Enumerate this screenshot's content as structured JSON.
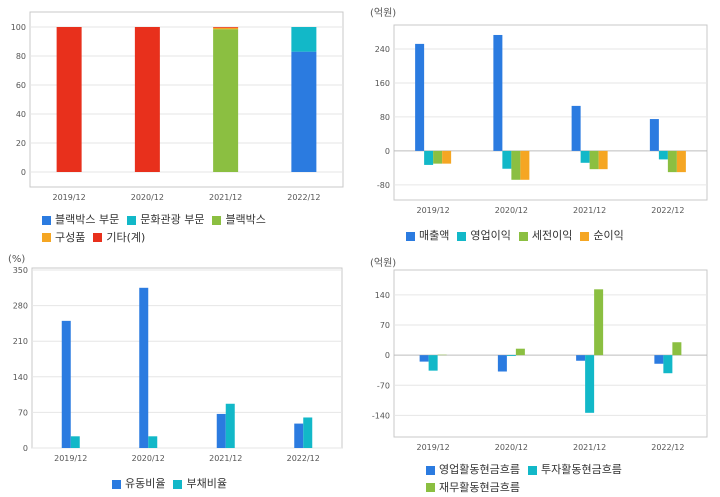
{
  "colors": {
    "blue": "#2b7be0",
    "cyan": "#12b8c8",
    "green": "#8bbf41",
    "orange": "#f5a623",
    "red": "#e8301c"
  },
  "chart_data": [
    {
      "id": "composition",
      "type": "bar",
      "stacked": true,
      "unit": "",
      "categories": [
        "2019/12",
        "2020/12",
        "2021/12",
        "2022/12"
      ],
      "yticks": [
        0,
        20,
        40,
        60,
        80,
        100
      ],
      "ylim": [
        0,
        100
      ],
      "series": [
        {
          "name": "블랙박스 부문",
          "color": "#2b7be0",
          "values": [
            0,
            0,
            0,
            83
          ]
        },
        {
          "name": "문화관광 부문",
          "color": "#12b8c8",
          "values": [
            0,
            0,
            0,
            17
          ]
        },
        {
          "name": "블랙박스",
          "color": "#8bbf41",
          "values": [
            0,
            0,
            98.5,
            0
          ]
        },
        {
          "name": "구성품",
          "color": "#f5a623",
          "values": [
            0,
            0,
            1,
            0
          ]
        },
        {
          "name": "기타(계)",
          "color": "#e8301c",
          "values": [
            100,
            100,
            0.5,
            0
          ]
        }
      ]
    },
    {
      "id": "income",
      "type": "bar",
      "unit": "(억원)",
      "categories": [
        "2019/12",
        "2020/12",
        "2021/12",
        "2022/12"
      ],
      "yticks": [
        -80,
        0,
        80,
        160,
        240
      ],
      "ylim": [
        -85,
        280
      ],
      "series": [
        {
          "name": "매출액",
          "color": "#2b7be0",
          "values": [
            252,
            273,
            106,
            75
          ]
        },
        {
          "name": "영업이익",
          "color": "#12b8c8",
          "values": [
            -33,
            -42,
            -28,
            -20
          ]
        },
        {
          "name": "세전이익",
          "color": "#8bbf41",
          "values": [
            -30,
            -68,
            -43,
            -50
          ]
        },
        {
          "name": "순이익",
          "color": "#f5a623",
          "values": [
            -30,
            -68,
            -43,
            -50
          ]
        }
      ]
    },
    {
      "id": "ratios",
      "type": "bar",
      "unit": "(%)",
      "categories": [
        "2019/12",
        "2020/12",
        "2021/12",
        "2022/12"
      ],
      "yticks": [
        0,
        70,
        140,
        210,
        280,
        350
      ],
      "ylim": [
        0,
        350
      ],
      "series": [
        {
          "name": "유동비율",
          "color": "#2b7be0",
          "values": [
            250,
            315,
            67,
            48
          ]
        },
        {
          "name": "부채비율",
          "color": "#12b8c8",
          "values": [
            23,
            23,
            87,
            60
          ]
        }
      ]
    },
    {
      "id": "cashflow",
      "type": "bar",
      "unit": "(억원)",
      "categories": [
        "2019/12",
        "2020/12",
        "2021/12",
        "2022/12"
      ],
      "yticks": [
        -140,
        -70,
        0,
        70,
        140
      ],
      "ylim": [
        -160,
        170
      ],
      "series": [
        {
          "name": "영업활동현금흐름",
          "color": "#2b7be0",
          "values": [
            -15,
            -38,
            -13,
            -20
          ]
        },
        {
          "name": "투자활동현금흐름",
          "color": "#12b8c8",
          "values": [
            -36,
            -2,
            -134,
            -42
          ]
        },
        {
          "name": "재무활동현금흐름",
          "color": "#8bbf41",
          "values": [
            1,
            15,
            153,
            30
          ]
        }
      ]
    }
  ]
}
